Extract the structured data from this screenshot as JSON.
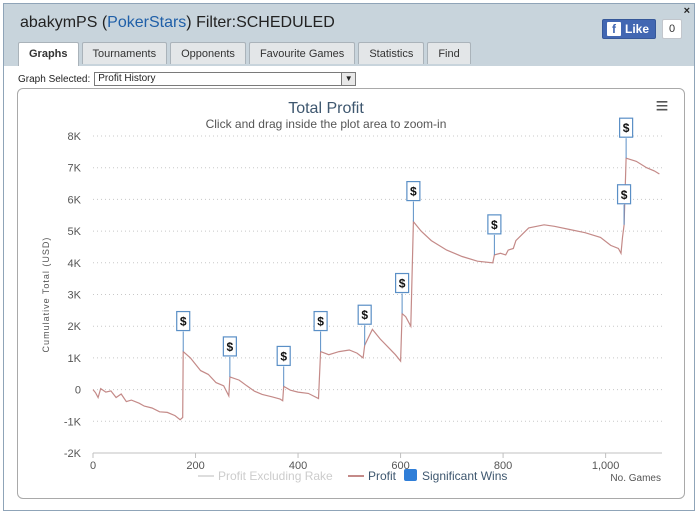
{
  "header": {
    "player": "abakymPS",
    "open_paren": " (",
    "site": "PokerStars",
    "filter_text": ") Filter:SCHEDULED",
    "close_label": "×"
  },
  "facebook": {
    "like_label": "Like",
    "logo": "f",
    "count": "0"
  },
  "tabs": [
    {
      "label": "Graphs",
      "active": true
    },
    {
      "label": "Tournaments",
      "active": false
    },
    {
      "label": "Opponents",
      "active": false
    },
    {
      "label": "Favourite Games",
      "active": false
    },
    {
      "label": "Statistics",
      "active": false
    },
    {
      "label": "Find",
      "active": false
    }
  ],
  "graph_select": {
    "label": "Graph Selected:",
    "value": "Profit History",
    "arrow": "▼"
  },
  "menu_icon": "≡",
  "chart_data": {
    "type": "line",
    "title": "Total Profit",
    "subtitle": "Click and drag inside the plot area to zoom-in",
    "xlabel": "No. Games",
    "ylabel": "Cumulative Total (USD)",
    "xlim": [
      0,
      1110
    ],
    "ylim": [
      -2000,
      8000
    ],
    "x_ticks": [
      0,
      200,
      400,
      600,
      800,
      1000
    ],
    "x_tick_labels": [
      "0",
      "200",
      "400",
      "600",
      "800",
      "1,000"
    ],
    "y_ticks": [
      8000,
      7000,
      6000,
      5000,
      4000,
      3000,
      2000,
      1000,
      0,
      -1000,
      -2000
    ],
    "y_tick_labels": [
      "8K",
      "7K",
      "6K",
      "5K",
      "4K",
      "3K",
      "2K",
      "1K",
      "0",
      "-1K",
      "-2K"
    ],
    "grid": "horizontal dotted",
    "legend_position": "bottom-center",
    "legend": [
      {
        "name": "Profit Excluding Rake",
        "color": "#dddddd",
        "kind": "line"
      },
      {
        "name": "Profit",
        "color": "#c48a88",
        "kind": "line"
      },
      {
        "name": "Significant Wins",
        "color": "#2f7ed8",
        "kind": "box"
      }
    ],
    "series": [
      {
        "name": "Profit",
        "color": "#c48a88",
        "points": [
          [
            0,
            0
          ],
          [
            5,
            -100
          ],
          [
            10,
            -250
          ],
          [
            15,
            30
          ],
          [
            25,
            -80
          ],
          [
            35,
            -40
          ],
          [
            45,
            -250
          ],
          [
            55,
            -140
          ],
          [
            65,
            -380
          ],
          [
            75,
            -330
          ],
          [
            90,
            -430
          ],
          [
            100,
            -520
          ],
          [
            115,
            -580
          ],
          [
            130,
            -700
          ],
          [
            145,
            -720
          ],
          [
            160,
            -820
          ],
          [
            170,
            -950
          ],
          [
            175,
            -880
          ],
          [
            176,
            1200
          ],
          [
            190,
            1000
          ],
          [
            210,
            600
          ],
          [
            225,
            480
          ],
          [
            240,
            220
          ],
          [
            255,
            120
          ],
          [
            265,
            -200
          ],
          [
            267,
            400
          ],
          [
            285,
            300
          ],
          [
            300,
            120
          ],
          [
            315,
            -50
          ],
          [
            330,
            -150
          ],
          [
            350,
            -230
          ],
          [
            365,
            -300
          ],
          [
            370,
            -350
          ],
          [
            372,
            100
          ],
          [
            385,
            -20
          ],
          [
            400,
            -80
          ],
          [
            420,
            -120
          ],
          [
            440,
            -280
          ],
          [
            444,
            1200
          ],
          [
            460,
            1100
          ],
          [
            480,
            1200
          ],
          [
            500,
            1250
          ],
          [
            515,
            1150
          ],
          [
            527,
            1000
          ],
          [
            530,
            1400
          ],
          [
            545,
            1900
          ],
          [
            560,
            1600
          ],
          [
            575,
            1350
          ],
          [
            590,
            1100
          ],
          [
            600,
            900
          ],
          [
            603,
            2400
          ],
          [
            610,
            2300
          ],
          [
            620,
            2000
          ],
          [
            625,
            5300
          ],
          [
            640,
            5000
          ],
          [
            660,
            4700
          ],
          [
            690,
            4400
          ],
          [
            720,
            4200
          ],
          [
            750,
            4050
          ],
          [
            780,
            4000
          ],
          [
            783,
            4250
          ],
          [
            795,
            4300
          ],
          [
            805,
            4250
          ],
          [
            810,
            4400
          ],
          [
            820,
            4450
          ],
          [
            825,
            4700
          ],
          [
            850,
            5100
          ],
          [
            880,
            5200
          ],
          [
            900,
            5150
          ],
          [
            930,
            5050
          ],
          [
            960,
            4950
          ],
          [
            990,
            4800
          ],
          [
            1010,
            4550
          ],
          [
            1025,
            4450
          ],
          [
            1030,
            4300
          ],
          [
            1033,
            4800
          ],
          [
            1036,
            5200
          ],
          [
            1040,
            7300
          ],
          [
            1060,
            7200
          ],
          [
            1080,
            7000
          ],
          [
            1095,
            6900
          ],
          [
            1105,
            6800
          ]
        ]
      }
    ],
    "significant_wins": [
      {
        "x": 176,
        "y": 1200,
        "label": "$"
      },
      {
        "x": 267,
        "y": 400,
        "label": "$"
      },
      {
        "x": 372,
        "y": 100,
        "label": "$"
      },
      {
        "x": 444,
        "y": 1200,
        "label": "$"
      },
      {
        "x": 530,
        "y": 1400,
        "label": "$"
      },
      {
        "x": 603,
        "y": 2400,
        "label": "$"
      },
      {
        "x": 625,
        "y": 5300,
        "label": "$"
      },
      {
        "x": 783,
        "y": 4250,
        "label": "$"
      },
      {
        "x": 1036,
        "y": 5200,
        "label": "$"
      },
      {
        "x": 1040,
        "y": 7300,
        "label": "$"
      }
    ]
  }
}
